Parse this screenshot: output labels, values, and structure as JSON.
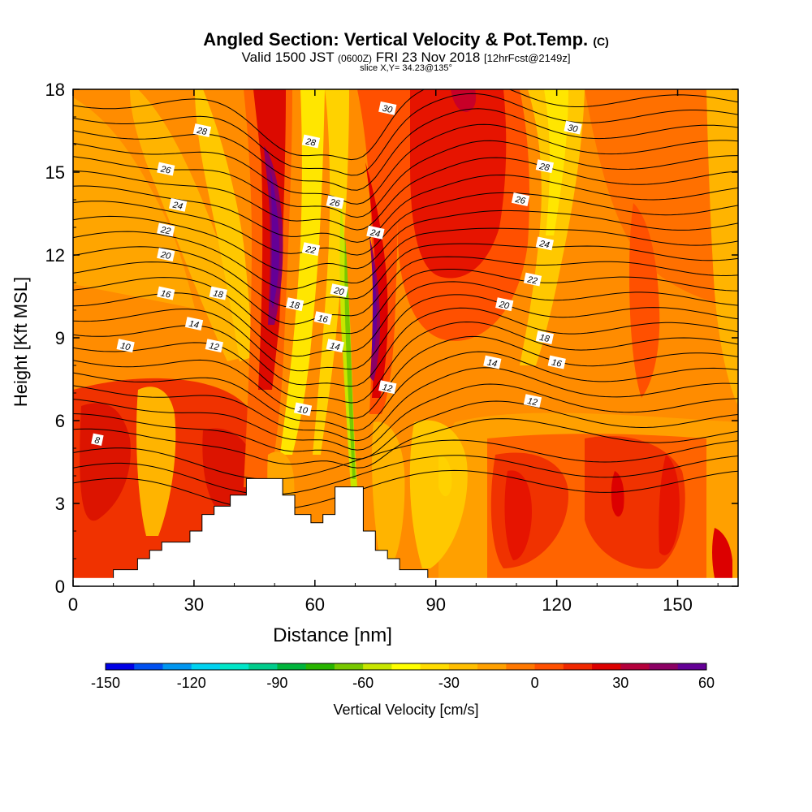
{
  "header": {
    "title_main": "Angled Section: Vertical Velocity & Pot.Temp.",
    "title_unit": "(C)",
    "subtitle_a": "Valid 1500 JST",
    "subtitle_b": "(0600Z)",
    "subtitle_c": "FRI 23 Nov 2018",
    "subtitle_d": "[12hrFcst@2149z]",
    "slice": "slice X,Y= 34.23@135°"
  },
  "chart_data": {
    "type": "heatmap",
    "xlabel": "Distance [nm]",
    "ylabel": "Height [Kft MSL]",
    "xlim": [
      0,
      165
    ],
    "ylim": [
      0,
      18
    ],
    "xticks": [
      0,
      30,
      60,
      90,
      120,
      150
    ],
    "yticks": [
      0,
      3,
      6,
      9,
      12,
      15,
      18
    ],
    "colorbar": {
      "label": "Vertical Velocity [cm/s]",
      "ticks": [
        -150,
        -120,
        -90,
        -60,
        -30,
        0,
        30,
        60
      ],
      "range": [
        -150,
        60
      ],
      "colors": [
        "#0000e6",
        "#0050f0",
        "#0096f0",
        "#00d2f0",
        "#00e6c8",
        "#00cc8c",
        "#00b43c",
        "#28b400",
        "#78c800",
        "#c8e600",
        "#ffff00",
        "#ffdc00",
        "#ffbe00",
        "#ffa000",
        "#ff7800",
        "#ff5000",
        "#f02800",
        "#dc0000",
        "#b4003c",
        "#8c0064",
        "#640096"
      ]
    },
    "series": [
      {
        "name": "Pot.Temp. contours",
        "labels": [
          {
            "text": "8",
            "x": 6,
            "y": 5.3
          },
          {
            "text": "10",
            "x": 13,
            "y": 8.7
          },
          {
            "text": "12",
            "x": 35,
            "y": 8.7
          },
          {
            "text": "14",
            "x": 30,
            "y": 9.5
          },
          {
            "text": "16",
            "x": 23,
            "y": 10.6
          },
          {
            "text": "18",
            "x": 36,
            "y": 10.6
          },
          {
            "text": "20",
            "x": 23,
            "y": 12.0
          },
          {
            "text": "22",
            "x": 23,
            "y": 12.9
          },
          {
            "text": "24",
            "x": 26,
            "y": 13.8
          },
          {
            "text": "26",
            "x": 23,
            "y": 15.1
          },
          {
            "text": "28",
            "x": 32,
            "y": 16.5
          },
          {
            "text": "10",
            "x": 57,
            "y": 6.4
          },
          {
            "text": "18",
            "x": 55,
            "y": 10.2
          },
          {
            "text": "16",
            "x": 62,
            "y": 9.7
          },
          {
            "text": "14",
            "x": 65,
            "y": 8.7
          },
          {
            "text": "20",
            "x": 66,
            "y": 10.7
          },
          {
            "text": "22",
            "x": 59,
            "y": 12.2
          },
          {
            "text": "26",
            "x": 65,
            "y": 13.9
          },
          {
            "text": "28",
            "x": 59,
            "y": 16.1
          },
          {
            "text": "24",
            "x": 75,
            "y": 12.8
          },
          {
            "text": "12",
            "x": 78,
            "y": 7.2
          },
          {
            "text": "30",
            "x": 78,
            "y": 17.3
          },
          {
            "text": "30",
            "x": 124,
            "y": 16.6
          },
          {
            "text": "28",
            "x": 117,
            "y": 15.2
          },
          {
            "text": "26",
            "x": 111,
            "y": 14.0
          },
          {
            "text": "24",
            "x": 117,
            "y": 12.4
          },
          {
            "text": "22",
            "x": 114,
            "y": 11.1
          },
          {
            "text": "20",
            "x": 107,
            "y": 10.2
          },
          {
            "text": "18",
            "x": 117,
            "y": 9.0
          },
          {
            "text": "16",
            "x": 120,
            "y": 8.1
          },
          {
            "text": "14",
            "x": 104,
            "y": 8.1
          },
          {
            "text": "12",
            "x": 114,
            "y": 6.7
          }
        ]
      }
    ],
    "terrain": [
      [
        10,
        0.6
      ],
      [
        16,
        0.6
      ],
      [
        16,
        1.0
      ],
      [
        19,
        1.0
      ],
      [
        19,
        1.3
      ],
      [
        22,
        1.3
      ],
      [
        22,
        1.6
      ],
      [
        29,
        1.6
      ],
      [
        29,
        2.0
      ],
      [
        32,
        2.0
      ],
      [
        32,
        2.6
      ],
      [
        35,
        2.6
      ],
      [
        35,
        2.9
      ],
      [
        39,
        2.9
      ],
      [
        39,
        3.3
      ],
      [
        43,
        3.3
      ],
      [
        43,
        3.9
      ],
      [
        52,
        3.9
      ],
      [
        52,
        3.3
      ],
      [
        55,
        3.3
      ],
      [
        55,
        2.6
      ],
      [
        59,
        2.6
      ],
      [
        59,
        2.3
      ],
      [
        62,
        2.3
      ],
      [
        62,
        2.6
      ],
      [
        65,
        2.6
      ],
      [
        65,
        3.6
      ],
      [
        72,
        3.6
      ],
      [
        72,
        2.0
      ],
      [
        75,
        2.0
      ],
      [
        75,
        1.3
      ],
      [
        78,
        1.3
      ],
      [
        78,
        1.0
      ],
      [
        81,
        1.0
      ],
      [
        81,
        0.6
      ],
      [
        88,
        0.6
      ]
    ]
  }
}
